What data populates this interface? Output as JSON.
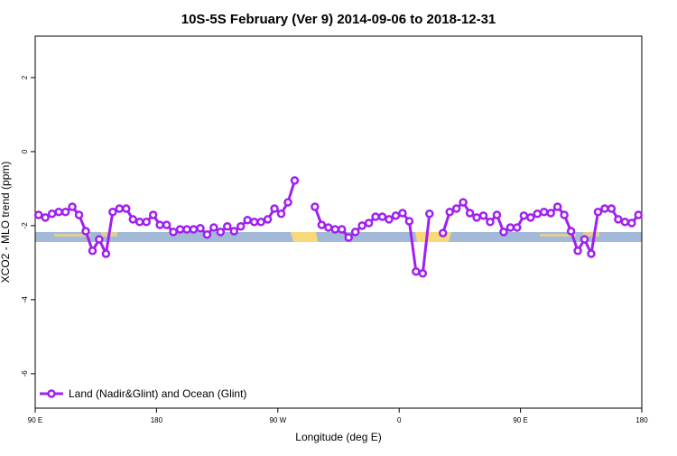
{
  "chart_data": {
    "type": "line",
    "title": "10S-5S February (Ver 9)   2014-09-06 to 2018-12-31",
    "x_label": "Longitude (deg E)",
    "y_label": "XCO2 - MLO trend (ppm)",
    "x": [
      92.5,
      97.5,
      102.5,
      107.5,
      112.5,
      117.5,
      122.5,
      127.5,
      132.5,
      137.5,
      142.5,
      147.5,
      152.5,
      157.5,
      162.5,
      167.5,
      172.5,
      177.5,
      182.5,
      187.5,
      192.5,
      197.5,
      202.5,
      207.5,
      212.5,
      217.5,
      222.5,
      227.5,
      232.5,
      237.5,
      242.5,
      247.5,
      252.5,
      257.5,
      262.5,
      267.5,
      272.5,
      277.5,
      282.5,
      287.5,
      292.5,
      297.5,
      302.5,
      307.5,
      312.5,
      317.5,
      322.5,
      327.5,
      332.5,
      337.5,
      342.5,
      347.5,
      352.5,
      357.5,
      362.5,
      367.5,
      372.5,
      377.5,
      382.5,
      387.5,
      392.5,
      397.5,
      402.5,
      407.5,
      412.5,
      417.5,
      422.5,
      427.5,
      432.5,
      437.5,
      442.5,
      447.5,
      452.5,
      457.5,
      462.5,
      467.5,
      472.5,
      477.5,
      482.5,
      487.5,
      492.5,
      497.5,
      502.5,
      507.5,
      512.5,
      517.5,
      522.5,
      527.5,
      532.5,
      537.5
    ],
    "series": [
      {
        "name": "Land (Nadir&Glint) and Ocean (Glint)",
        "color": "#a020f0",
        "values": [
          -1.71,
          -1.78,
          -1.68,
          -1.63,
          -1.63,
          -1.49,
          -1.71,
          -2.15,
          -2.68,
          -2.37,
          -2.76,
          -1.63,
          -1.54,
          -1.54,
          -1.83,
          -1.9,
          -1.9,
          -1.71,
          -1.98,
          -1.98,
          -2.17,
          -2.1,
          -2.1,
          -2.1,
          -2.07,
          -2.24,
          -2.05,
          -2.17,
          -2.02,
          -2.15,
          -2.02,
          -1.85,
          -1.9,
          -1.9,
          -1.83,
          -1.54,
          -1.68,
          -1.37,
          -0.78,
          null,
          null,
          -1.49,
          -1.98,
          -2.05,
          -2.1,
          -2.1,
          -2.32,
          -2.17,
          -2.0,
          -1.93,
          -1.76,
          -1.76,
          -1.83,
          -1.73,
          -1.66,
          -1.88,
          -3.24,
          -3.29,
          -1.68,
          null,
          -2.2,
          -1.63,
          -1.54,
          -1.37,
          -1.66,
          -1.78,
          -1.73,
          -1.9,
          -1.71,
          -2.17,
          -2.05,
          -2.05,
          -1.73,
          -1.78,
          -1.68,
          -1.63,
          -1.66,
          -1.49,
          -1.71,
          -2.15,
          -2.68,
          -2.37,
          -2.76,
          -1.63,
          -1.54,
          -1.54,
          -1.83,
          -1.9,
          -1.93,
          -1.71
        ]
      }
    ],
    "xlim": [
      90,
      540
    ],
    "xticks": [
      {
        "value": 90,
        "label": "90 E"
      },
      180,
      {
        "value": 270,
        "label": "90 W"
      },
      {
        "value": 360,
        "label": "0"
      },
      {
        "value": 450,
        "label": "90 E"
      },
      {
        "value": 540,
        "label": "180"
      }
    ],
    "ylim": [
      -6.93,
      3.12
    ],
    "yticks": [
      -6,
      -4,
      -2,
      0,
      2
    ],
    "legend": "bottom-left"
  }
}
